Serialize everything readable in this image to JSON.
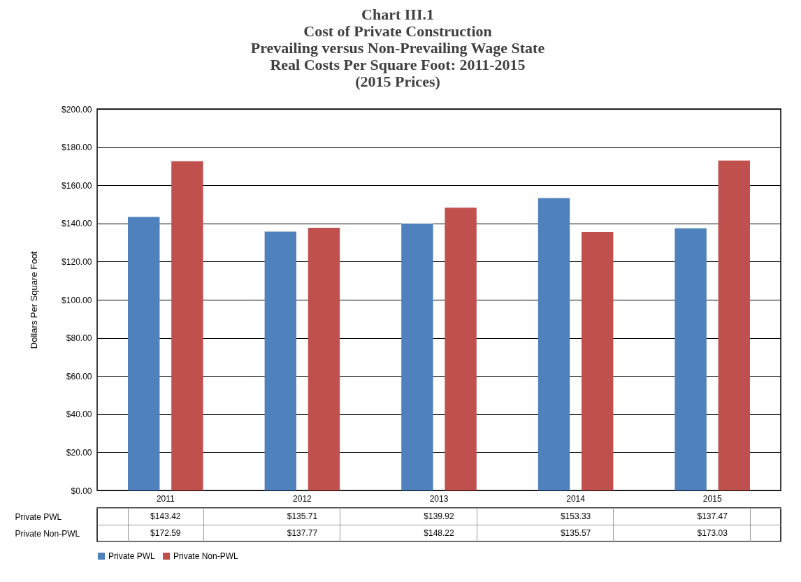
{
  "chart_data": {
    "type": "bar",
    "title": [
      "Chart III.1",
      "Cost of Private Construction",
      "Prevailing versus Non-Prevailing Wage State",
      "Real Costs Per Square Foot:  2011-2015",
      "(2015 Prices)"
    ],
    "ylabel": "Dollars Per Square Foot",
    "categories": [
      "2011",
      "2012",
      "2013",
      "2014",
      "2015"
    ],
    "series": [
      {
        "name": "Private PWL",
        "color": "#4f81bd",
        "values": [
          143.42,
          135.71,
          139.92,
          153.33,
          137.47
        ],
        "value_labels": [
          "$143.42",
          "$135.71",
          "$139.92",
          "$153.33",
          "$137.47"
        ]
      },
      {
        "name": "Private Non-PWL",
        "color": "#c0504d",
        "values": [
          172.59,
          137.77,
          148.22,
          135.57,
          173.03
        ],
        "value_labels": [
          "$172.59",
          "$137.77",
          "$148.22",
          "$135.57",
          "$173.03"
        ]
      }
    ],
    "ylim": [
      0,
      200
    ],
    "yticks": [
      {
        "value": 0,
        "label": "$0.00"
      },
      {
        "value": 20,
        "label": "$20.00"
      },
      {
        "value": 40,
        "label": "$40.00"
      },
      {
        "value": 60,
        "label": "$60.00"
      },
      {
        "value": 80,
        "label": "$80.00"
      },
      {
        "value": 100,
        "label": "$100.00"
      },
      {
        "value": 120,
        "label": "$120.00"
      },
      {
        "value": 140,
        "label": "$140.00"
      },
      {
        "value": 160,
        "label": "$160.00"
      },
      {
        "value": 180,
        "label": "$180.00"
      },
      {
        "value": 200,
        "label": "$200.00"
      }
    ],
    "grid": "y",
    "legend": "bottom"
  }
}
